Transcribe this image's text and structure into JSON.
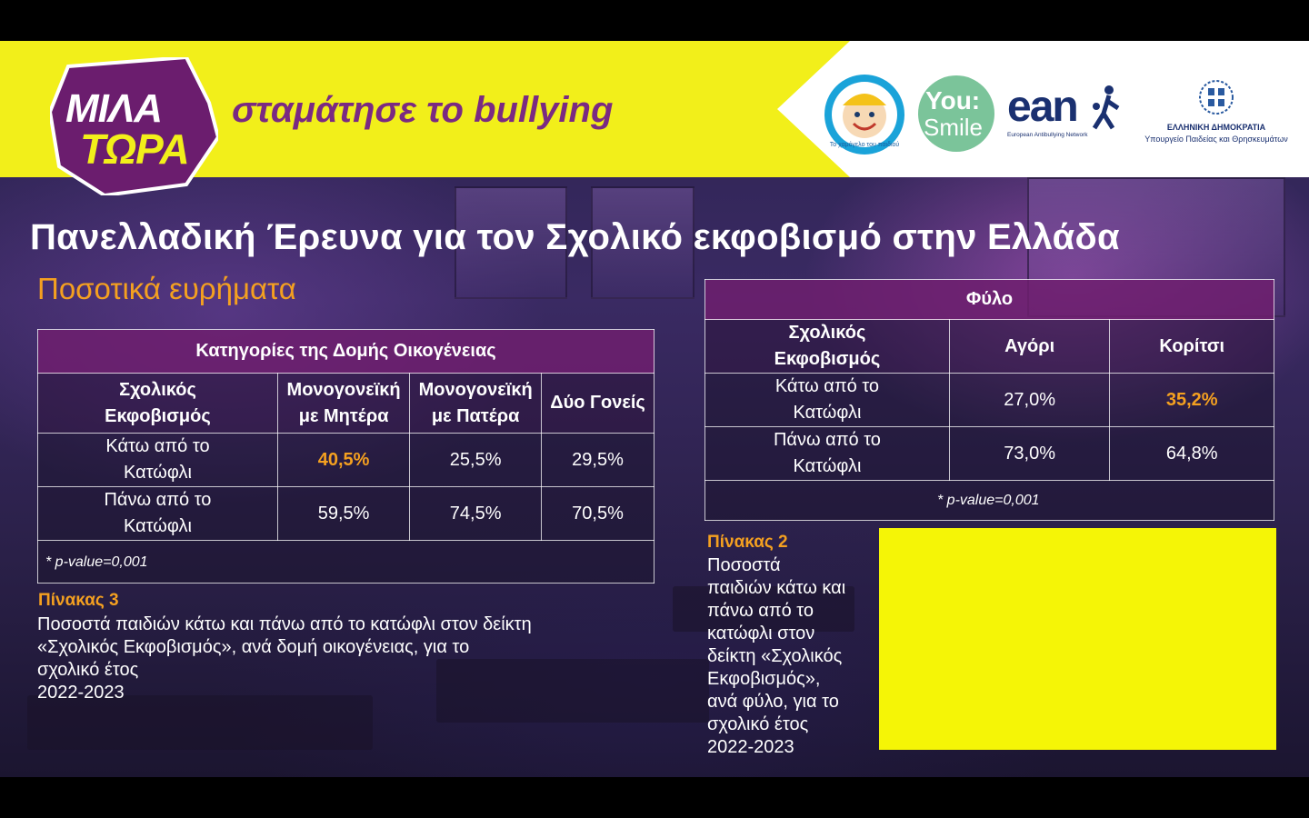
{
  "header": {
    "logo_line1": "ΜΙΛΑ",
    "logo_line2": "ΤΩΡΑ",
    "tagline": "σταμάτησε το bullying",
    "partners": [
      {
        "name": "Το Χαμόγελο του Παιδιού",
        "label": "Το χαμόγελο του παιδιού"
      },
      {
        "name": "You Smile",
        "label1": "You:",
        "label2": "Smile"
      },
      {
        "name": "EAN",
        "label": "ean",
        "sub": "European Antibullying Network"
      },
      {
        "name": "Ministry",
        "label1": "ΕΛΛΗΝΙΚΗ ΔΗΜΟΚΡΑΤΙΑ",
        "label2": "Υπουργείο Παιδείας και Θρησκευμάτων"
      }
    ]
  },
  "title": "Πανελλαδική Έρευνα για τον Σχολικό εκφοβισμό στην Ελλάδα",
  "subtitle": "Ποσοτικά ευρήματα",
  "table3": {
    "header": "Κατηγορίες της Δομής Οικογένειας",
    "row_header": "Σχολικός Εκφοβισμός",
    "columns": [
      "Μονογονεϊκή με Μητέρα",
      "Μονογονεϊκή με Πατέρα",
      "Δύο Γονείς"
    ],
    "rows": [
      {
        "label": "Κάτω από το Κατώφλι",
        "values": [
          "40,5%",
          "25,5%",
          "29,5%"
        ]
      },
      {
        "label": "Πάνω από το Κατώφλι",
        "values": [
          "59,5%",
          "74,5%",
          "70,5%"
        ]
      }
    ],
    "note": "* p-value=0,001"
  },
  "table2": {
    "header": "Φύλο",
    "row_header": "Σχολικός Εκφοβισμός",
    "columns": [
      "Αγόρι",
      "Κορίτσι"
    ],
    "rows": [
      {
        "label": "Κάτω από το Κατώφλι",
        "values": [
          "27,0%",
          "35,2%"
        ]
      },
      {
        "label": "Πάνω από το Κατώφλι",
        "values": [
          "73,0%",
          "64,8%"
        ]
      }
    ],
    "note": "* p-value=0,001"
  },
  "caption3": {
    "label": "Πίνακας 3",
    "text": "Ποσοστά παιδιών κάτω και πάνω από το κατώφλι στον δείκτη\n«Σχολικός Εκφοβισμός», ανά δομή οικογένειας, για το\nσχολικό έτος\n2022-2023"
  },
  "caption2": {
    "label": "Πίνακας 2",
    "text": "Ποσοστά\nπαιδιών κάτω και\nπάνω από το\nκατώφλι στον\nδείκτη «Σχολικός\nΕκφοβισμός»,\nανά φύλο, για το\nσχολικό έτος\n2022-2023"
  },
  "colors": {
    "banner": "#f2ef1a",
    "accent": "#f4a020",
    "brand_purple": "#7a2a82",
    "box": "#f5f506"
  }
}
